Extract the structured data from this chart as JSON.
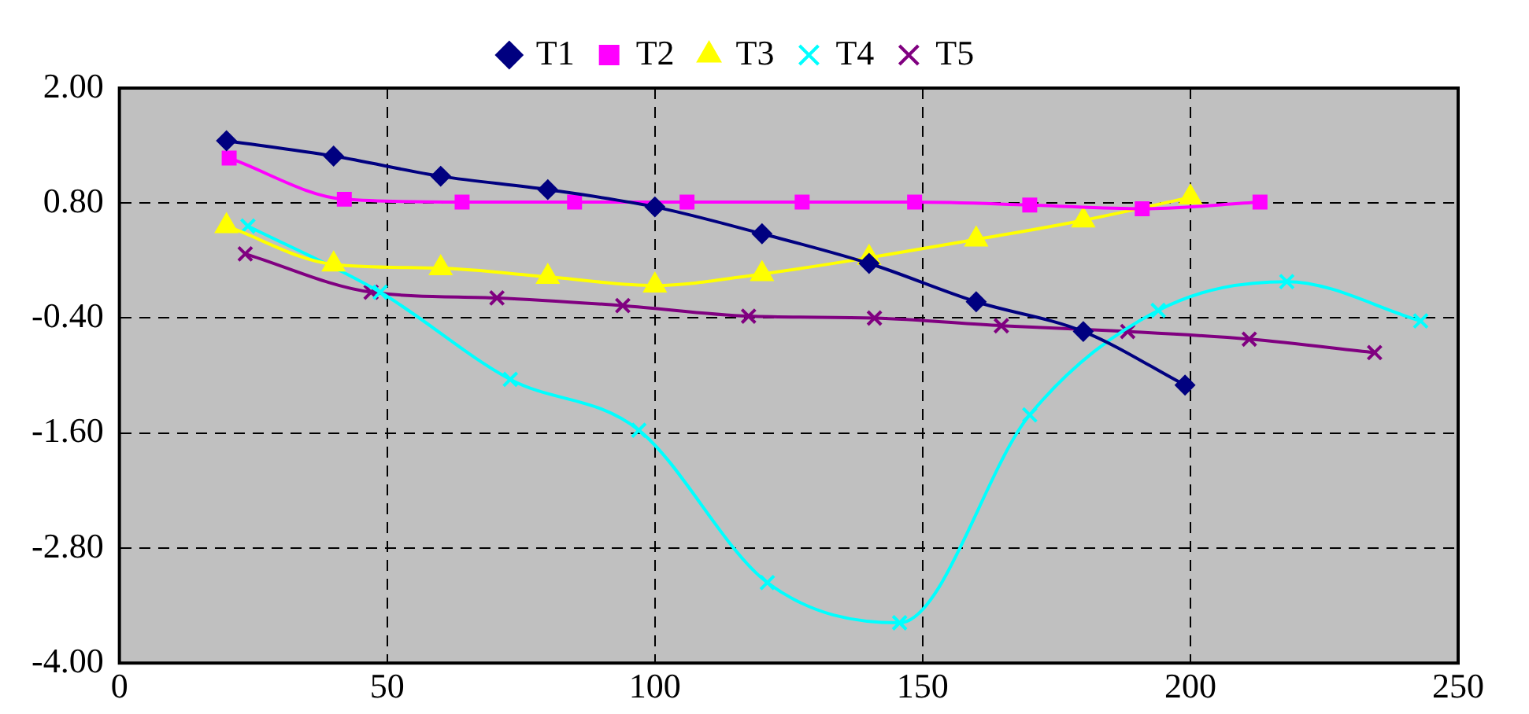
{
  "chart_data": {
    "type": "line",
    "legend": "top",
    "grid": true,
    "line_style": "solid",
    "xlim": [
      0,
      250
    ],
    "xticks": [
      0,
      50,
      100,
      150,
      200,
      250
    ],
    "ylim": [
      -4,
      2
    ],
    "yticks": [
      {
        "value": -4,
        "label": "-4.00"
      },
      {
        "value": -2.8,
        "label": "-2.80"
      },
      {
        "value": -1.6,
        "label": "-1.60"
      },
      {
        "value": -0.4,
        "label": "-0.40"
      },
      {
        "value": 0.8,
        "label": "0.80"
      },
      {
        "value": 2,
        "label": "2.00"
      }
    ],
    "series": [
      {
        "name": "T1",
        "color": "#000080",
        "marker": "diamond",
        "x": [
          20,
          40,
          60,
          80,
          100,
          120,
          140,
          160,
          180,
          199
        ],
        "values": [
          1.45,
          1.29,
          1.08,
          0.94,
          0.76,
          0.48,
          0.17,
          -0.23,
          -0.54,
          -1.1
        ]
      },
      {
        "name": "T2",
        "color": "#ff00ff",
        "marker": "square",
        "x": [
          20.5,
          42,
          64,
          85,
          106,
          127.5,
          148.5,
          170,
          191,
          213
        ],
        "values": [
          1.27,
          0.84,
          0.81,
          0.81,
          0.81,
          0.81,
          0.81,
          0.78,
          0.74,
          0.81
        ]
      },
      {
        "name": "T3",
        "color": "#ffff00",
        "marker": "triangle",
        "x": [
          20,
          40,
          60,
          80,
          100,
          120,
          140,
          160,
          180,
          200
        ],
        "values": [
          0.56,
          0.16,
          0.12,
          0.03,
          -0.06,
          0.06,
          0.23,
          0.42,
          0.62,
          0.86
        ]
      },
      {
        "name": "T4",
        "color": "#00ffff",
        "marker": "cross",
        "x": [
          24,
          48.7,
          73,
          97,
          121,
          145.7,
          170,
          194,
          218,
          243
        ],
        "values": [
          0.56,
          -0.13,
          -1.04,
          -1.57,
          -3.16,
          -3.58,
          -1.41,
          -0.32,
          -0.02,
          -0.43
        ]
      },
      {
        "name": "T5",
        "color": "#800080",
        "marker": "cross",
        "x": [
          23.5,
          47,
          70.5,
          94,
          117.5,
          141,
          164.7,
          188.3,
          211,
          234.4
        ],
        "values": [
          0.27,
          -0.13,
          -0.19,
          -0.27,
          -0.38,
          -0.4,
          -0.48,
          -0.54,
          -0.62,
          -0.76
        ]
      }
    ]
  }
}
